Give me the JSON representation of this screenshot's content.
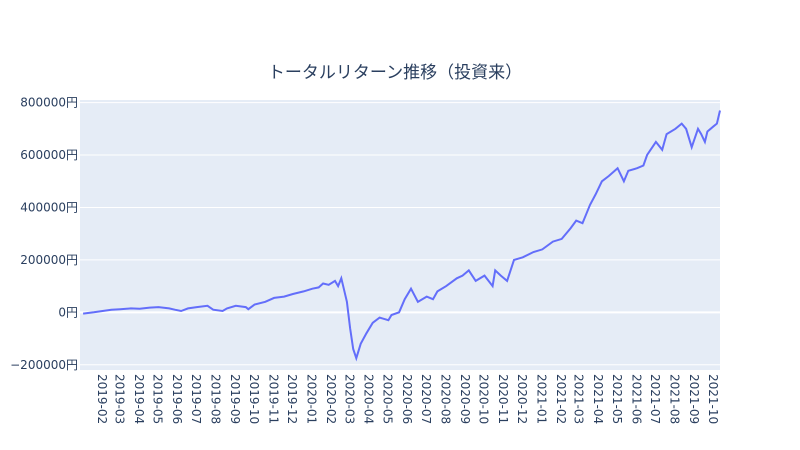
{
  "chart_data": {
    "type": "line",
    "title": "トータルリターン推移（投資来）",
    "xlabel": "",
    "ylabel": "",
    "ylim": [
      -200000,
      800000
    ],
    "y_ticks": [
      "−200000円",
      "0円",
      "200000円",
      "400000円",
      "600000円",
      "800000円"
    ],
    "y_tick_values": [
      -200000,
      0,
      200000,
      400000,
      600000,
      800000
    ],
    "x_tick_labels": [
      "2019-02",
      "2019-03",
      "2019-04",
      "2019-05",
      "2019-06",
      "2019-07",
      "2019-08",
      "2019-09",
      "2019-10",
      "2019-11",
      "2019-12",
      "2020-01",
      "2020-02",
      "2020-03",
      "2020-04",
      "2020-05",
      "2020-06",
      "2020-07",
      "2020-08",
      "2020-09",
      "2020-10",
      "2020-11",
      "2020-12",
      "2021-01",
      "2021-02",
      "2021-03",
      "2021-04",
      "2021-05",
      "2021-06",
      "2021-07",
      "2021-08",
      "2021-09",
      "2021-10"
    ],
    "grid": true,
    "colors": {
      "line": "#636efa",
      "plot_bg": "#e5ecf6",
      "grid": "#ffffff",
      "text": "#2a3f5f"
    },
    "series": [
      {
        "x": [
          "2019-01-15",
          "2019-02-01",
          "2019-02-15",
          "2019-03-01",
          "2019-03-15",
          "2019-04-01",
          "2019-04-15",
          "2019-05-01",
          "2019-05-15",
          "2019-06-01",
          "2019-06-10",
          "2019-06-20",
          "2019-07-01",
          "2019-07-15",
          "2019-08-01",
          "2019-08-10",
          "2019-08-25",
          "2019-09-01",
          "2019-09-15",
          "2019-10-01",
          "2019-10-05",
          "2019-10-15",
          "2019-11-01",
          "2019-11-15",
          "2019-12-01",
          "2019-12-15",
          "2020-01-01",
          "2020-01-15",
          "2020-01-25",
          "2020-02-01",
          "2020-02-10",
          "2020-02-20",
          "2020-02-25",
          "2020-03-01",
          "2020-03-05",
          "2020-03-10",
          "2020-03-15",
          "2020-03-20",
          "2020-03-25",
          "2020-04-01",
          "2020-04-10",
          "2020-04-20",
          "2020-05-01",
          "2020-05-15",
          "2020-05-20",
          "2020-06-01",
          "2020-06-10",
          "2020-06-20",
          "2020-07-01",
          "2020-07-15",
          "2020-07-25",
          "2020-08-01",
          "2020-08-15",
          "2020-09-01",
          "2020-09-10",
          "2020-09-20",
          "2020-10-01",
          "2020-10-15",
          "2020-10-28",
          "2020-11-01",
          "2020-11-10",
          "2020-11-20",
          "2020-12-01",
          "2020-12-15",
          "2021-01-01",
          "2021-01-15",
          "2021-02-01",
          "2021-02-15",
          "2021-03-01",
          "2021-03-10",
          "2021-03-20",
          "2021-04-01",
          "2021-04-10",
          "2021-04-20",
          "2021-05-01",
          "2021-05-15",
          "2021-05-25",
          "2021-06-01",
          "2021-06-15",
          "2021-06-25",
          "2021-07-01",
          "2021-07-15",
          "2021-07-25",
          "2021-08-01",
          "2021-08-15",
          "2021-08-25",
          "2021-09-01",
          "2021-09-10",
          "2021-09-20",
          "2021-09-25",
          "2021-10-01",
          "2021-10-05",
          "2021-10-10",
          "2021-10-15",
          "2021-10-20",
          "2021-10-25"
        ],
        "values": [
          -5000,
          0,
          5000,
          10000,
          12000,
          15000,
          14000,
          18000,
          20000,
          15000,
          10000,
          5000,
          15000,
          20000,
          25000,
          10000,
          5000,
          15000,
          25000,
          20000,
          12000,
          30000,
          40000,
          55000,
          60000,
          70000,
          80000,
          90000,
          95000,
          110000,
          105000,
          120000,
          100000,
          130000,
          90000,
          40000,
          -60000,
          -140000,
          -175000,
          -120000,
          -80000,
          -40000,
          -20000,
          -30000,
          -10000,
          0,
          50000,
          90000,
          40000,
          60000,
          50000,
          80000,
          100000,
          130000,
          140000,
          160000,
          120000,
          140000,
          100000,
          160000,
          140000,
          120000,
          200000,
          210000,
          230000,
          240000,
          270000,
          280000,
          320000,
          350000,
          340000,
          410000,
          450000,
          500000,
          520000,
          550000,
          500000,
          540000,
          550000,
          560000,
          600000,
          650000,
          620000,
          680000,
          700000,
          720000,
          700000,
          630000,
          700000,
          680000,
          650000,
          690000,
          700000,
          710000,
          720000,
          770000
        ]
      }
    ]
  }
}
